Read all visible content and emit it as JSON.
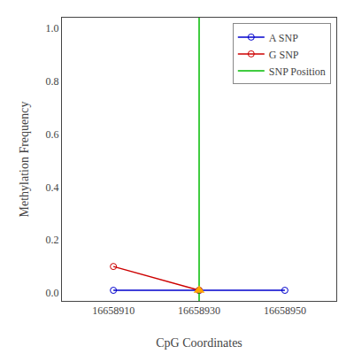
{
  "chart_data": {
    "type": "line",
    "xlabel": "CpG Coordinates",
    "ylabel": "Methylation Frequency",
    "series": [
      {
        "name": "A SNP",
        "color": "#0000cd",
        "marker": "circle-open",
        "x": [
          16658910,
          16658930,
          16658950
        ],
        "values": [
          0.01,
          0.01,
          0.01
        ]
      },
      {
        "name": "G SNP",
        "color": "#cd0000",
        "marker": "circle-open",
        "x": [
          16658910,
          16658930
        ],
        "values": [
          0.1,
          0.01
        ]
      },
      {
        "name": "SNP Position",
        "color": "#00bb00",
        "type": "vline",
        "x": [
          16658930
        ]
      },
      {
        "type": "scatter",
        "color": "#ffa500",
        "marker": "triangle-up",
        "x": [
          16658930
        ],
        "values": [
          0.01
        ]
      }
    ],
    "xlim": [
      16658898,
      16658962
    ],
    "ylim": [
      -0.03,
      1.04
    ],
    "xticks": [
      16658910,
      16658930,
      16658950
    ],
    "yticks": [
      {
        "value": 0.0,
        "label": "0.0"
      },
      0.2,
      0.4,
      0.6,
      0.8,
      {
        "value": 1.0,
        "label": "1.0"
      }
    ],
    "grid": false,
    "legend": "upper right"
  }
}
